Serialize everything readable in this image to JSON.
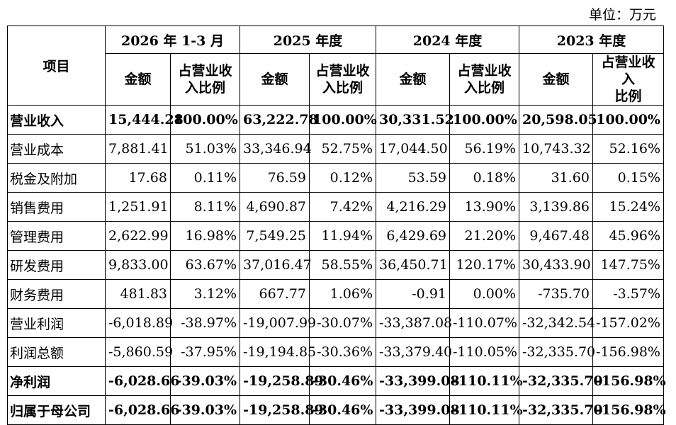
{
  "unit": "单位：万元",
  "header": {
    "item": "项目",
    "periods": [
      "2026 年 1-3 月",
      "2025 年度",
      "2024 年度",
      "2023 年度"
    ],
    "amount": "金额",
    "ratio_line1": "占营业收",
    "ratio_line2": "入比例",
    "ratio_alt_line1": "占营业收入",
    "ratio_alt_line2": "比例"
  },
  "rows": [
    {
      "label": "营业收入",
      "bold": true,
      "values": [
        "15,444.28",
        "100.00%",
        "63,222.78",
        "100.00%",
        "30,331.52",
        "100.00%",
        "20,598.05",
        "100.00%"
      ]
    },
    {
      "label": "营业成本",
      "bold": false,
      "values": [
        "7,881.41",
        "51.03%",
        "33,346.94",
        "52.75%",
        "17,044.50",
        "56.19%",
        "10,743.32",
        "52.16%"
      ]
    },
    {
      "label": "税金及附加",
      "bold": false,
      "values": [
        "17.68",
        "0.11%",
        "76.59",
        "0.12%",
        "53.59",
        "0.18%",
        "31.60",
        "0.15%"
      ]
    },
    {
      "label": "销售费用",
      "bold": false,
      "values": [
        "1,251.91",
        "8.11%",
        "4,690.87",
        "7.42%",
        "4,216.29",
        "13.90%",
        "3,139.86",
        "15.24%"
      ]
    },
    {
      "label": "管理费用",
      "bold": false,
      "values": [
        "2,622.99",
        "16.98%",
        "7,549.25",
        "11.94%",
        "6,429.69",
        "21.20%",
        "9,467.48",
        "45.96%"
      ]
    },
    {
      "label": "研发费用",
      "bold": false,
      "values": [
        "9,833.00",
        "63.67%",
        "37,016.47",
        "58.55%",
        "36,450.71",
        "120.17%",
        "30,433.90",
        "147.75%"
      ]
    },
    {
      "label": "财务费用",
      "bold": false,
      "values": [
        "481.83",
        "3.12%",
        "667.77",
        "1.06%",
        "-0.91",
        "0.00%",
        "-735.70",
        "-3.57%"
      ]
    },
    {
      "label": "营业利润",
      "bold": false,
      "values": [
        "-6,018.89",
        "-38.97%",
        "-19,007.99",
        "-30.07%",
        "-33,387.08",
        "-110.07%",
        "-32,342.54",
        "-157.02%"
      ]
    },
    {
      "label": "利润总额",
      "bold": false,
      "values": [
        "-5,860.59",
        "-37.95%",
        "-19,194.85",
        "-30.36%",
        "-33,379.40",
        "-110.05%",
        "-32,335.70",
        "-156.98%"
      ]
    },
    {
      "label": "净利润",
      "bold": true,
      "values": [
        "-6,028.66",
        "-39.03%",
        "-19,258.89",
        "-30.46%",
        "-33,399.08",
        "-110.11%",
        "-32,335.70",
        "-156.98%"
      ]
    },
    {
      "label": "归属于母公司",
      "bold": true,
      "values": [
        "-6,028.66",
        "-39.03%",
        "-19,258.89",
        "-30.46%",
        "-33,399.08",
        "-110.11%",
        "-32,335.70",
        "-156.98%"
      ]
    }
  ]
}
